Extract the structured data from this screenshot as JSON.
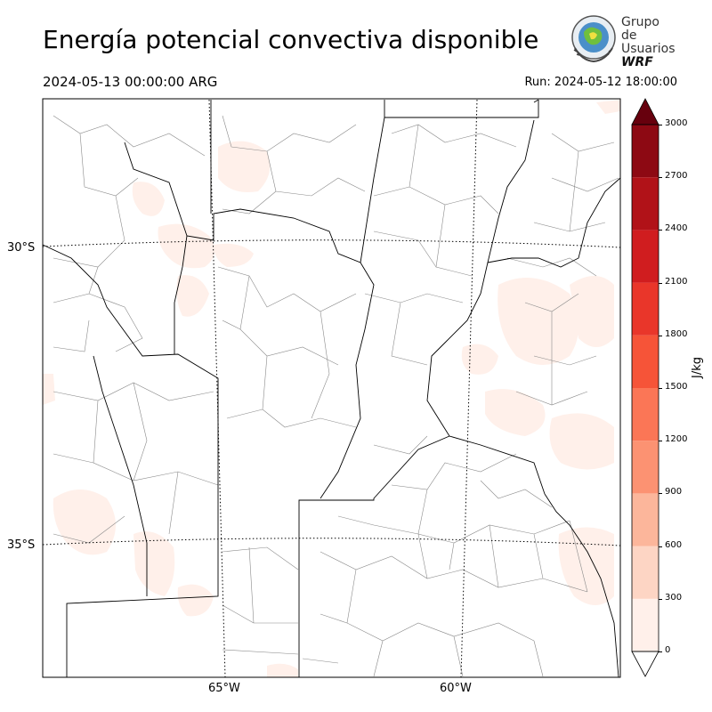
{
  "header": {
    "title": "Energía potencial convectiva disponible",
    "valid_time": "2024-05-13 00:00:00 ARG",
    "run_time": "Run: 2024-05-12 18:00:00"
  },
  "logo": {
    "line1": "Grupo de",
    "line2": "Usuarios",
    "line3": "WRF"
  },
  "map": {
    "lat_labels": [
      "30°S",
      "35°S"
    ],
    "lon_labels": [
      "65°W",
      "60°W"
    ],
    "field_colors": {
      "cape_0_300": "#fff0ea",
      "border_provincial": "#000000",
      "border_department": "#8a8a8a"
    }
  },
  "colorbar": {
    "units": "J/kg",
    "ticks": [
      "0",
      "300",
      "600",
      "900",
      "1200",
      "1500",
      "1800",
      "2100",
      "2400",
      "2700",
      "3000"
    ],
    "colors": [
      "#fff0ea",
      "#fdd5c4",
      "#fcb69b",
      "#fc9272",
      "#fb7656",
      "#f65438",
      "#e9362a",
      "#d01d1f",
      "#b11218",
      "#8d0913",
      "#67000d"
    ]
  }
}
